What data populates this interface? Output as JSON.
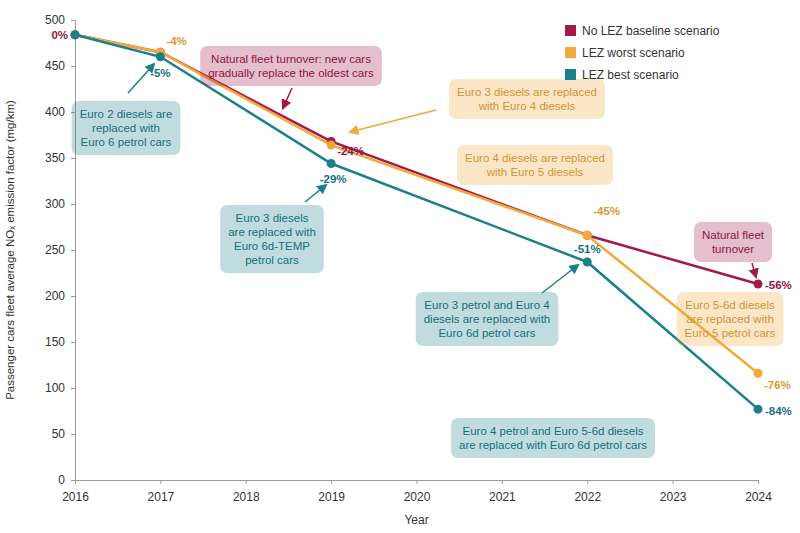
{
  "chart_data": {
    "type": "line",
    "x_label": "Year",
    "y_label": "Passenger cars fleet average NOₓ emission factor (mg/km)",
    "x": [
      2016,
      2017,
      2019,
      2022,
      2024
    ],
    "xlim": [
      2016,
      2024
    ],
    "xticks": [
      2016,
      2017,
      2018,
      2019,
      2020,
      2021,
      2022,
      2023,
      2024
    ],
    "ylim": [
      0,
      500
    ],
    "yticks": [
      0,
      50,
      100,
      150,
      200,
      250,
      300,
      350,
      400,
      450,
      500
    ],
    "grid": false,
    "legend": "top-right",
    "marker": "circle",
    "series": [
      {
        "name": "No LEZ baseline scenario",
        "color": "#a3194b",
        "values": [
          484,
          465,
          368,
          266,
          213
        ],
        "change_labels": [
          "0%",
          null,
          "-24%",
          null,
          "-56%"
        ]
      },
      {
        "name": "LEZ worst scenario",
        "color": "#f2a93b",
        "values": [
          484,
          465,
          364,
          266,
          116
        ],
        "change_labels": [
          null,
          "-4%",
          null,
          "-45%",
          "-76%"
        ]
      },
      {
        "name": "LEZ best scenario",
        "color": "#1b808a",
        "values": [
          484,
          460,
          344,
          237,
          77
        ],
        "change_labels": [
          null,
          "-5%",
          "-29%",
          "-51%",
          "-84%"
        ]
      }
    ],
    "annotations": [
      {
        "lines": [
          "Euro 2 diesels are",
          "replaced with",
          "Euro 6 petrol cars"
        ]
      },
      {
        "lines": [
          "Natural fleet turnover: new cars",
          "gradually replace the oldest cars"
        ]
      },
      {
        "lines": [
          "Euro 3 diesels are replaced",
          "with Euro 4 diesels"
        ]
      },
      {
        "lines": [
          "Euro 3 diesels",
          "are replaced with",
          "Euro 6d-TEMP",
          "petrol cars"
        ]
      },
      {
        "lines": [
          "Euro 4 diesels are replaced",
          "with Euro 5 diesels"
        ]
      },
      {
        "lines": [
          "Natural fleet",
          "turnover"
        ]
      },
      {
        "lines": [
          "Euro 3 petrol and Euro 4",
          "diesels are replaced with",
          "Euro 6d petrol cars"
        ]
      },
      {
        "lines": [
          "Euro 5-6d diesels",
          "are replaced with",
          "Euro 5 petrol cars"
        ]
      },
      {
        "lines": [
          "Euro 4 petrol and Euro 5-6d diesels",
          "are replaced with Euro 6d petrol cars"
        ]
      }
    ]
  }
}
